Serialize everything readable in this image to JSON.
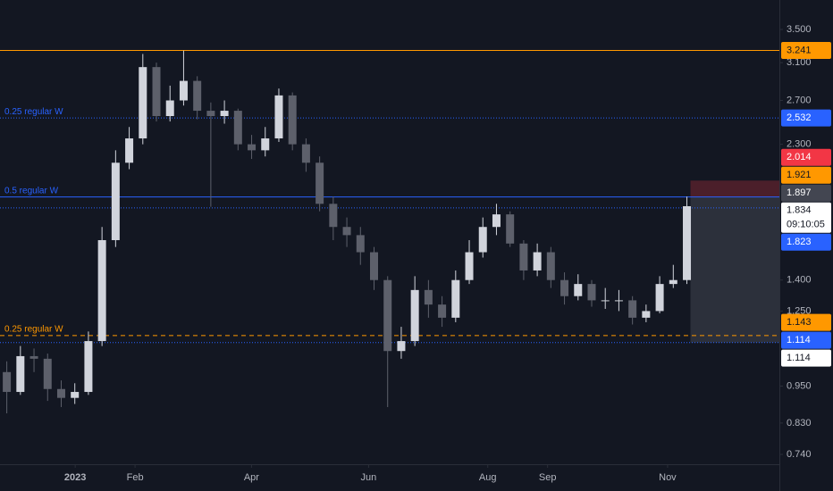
{
  "chart_data": {
    "type": "candlestick",
    "log_scale": true,
    "up_color": "#d1d4dc",
    "down_color": "#5d606b",
    "open": [
      1.0,
      0.93,
      1.06,
      1.05,
      0.94,
      0.91,
      0.93,
      1.12,
      1.62,
      2.15,
      2.35,
      3.05,
      2.55,
      2.7,
      2.9,
      2.6,
      2.55,
      2.6,
      2.3,
      2.25,
      2.35,
      2.75,
      2.3,
      2.15,
      1.85,
      1.7,
      1.65,
      1.55,
      1.4,
      1.08,
      1.12,
      1.35,
      1.28,
      1.22,
      1.4,
      1.55,
      1.7,
      1.78,
      1.6,
      1.45,
      1.55,
      1.4,
      1.32,
      1.38,
      1.3,
      1.3,
      1.3,
      1.22,
      1.25,
      1.38,
      1.4
    ],
    "high": [
      1.04,
      1.1,
      1.09,
      1.07,
      0.97,
      0.96,
      1.16,
      1.7,
      2.25,
      2.45,
      3.2,
      3.1,
      2.85,
      3.24,
      2.95,
      2.68,
      2.7,
      2.62,
      2.38,
      2.45,
      2.82,
      2.78,
      2.35,
      2.2,
      1.9,
      1.76,
      1.7,
      1.58,
      1.42,
      1.18,
      1.42,
      1.4,
      1.32,
      1.45,
      1.62,
      1.76,
      1.85,
      1.8,
      1.62,
      1.6,
      1.58,
      1.44,
      1.43,
      1.4,
      1.36,
      1.35,
      1.32,
      1.28,
      1.42,
      1.48,
      1.9
    ],
    "low": [
      0.86,
      0.92,
      1.0,
      0.9,
      0.88,
      0.89,
      0.92,
      1.1,
      1.58,
      2.1,
      2.3,
      2.5,
      2.5,
      2.65,
      2.52,
      1.83,
      2.48,
      2.25,
      2.18,
      2.2,
      2.32,
      2.25,
      2.08,
      1.8,
      1.62,
      1.58,
      1.48,
      1.35,
      0.88,
      1.05,
      1.1,
      1.22,
      1.18,
      1.2,
      1.38,
      1.52,
      1.65,
      1.58,
      1.4,
      1.42,
      1.36,
      1.28,
      1.3,
      1.27,
      1.26,
      1.25,
      1.19,
      1.2,
      1.24,
      1.36,
      1.38
    ],
    "close": [
      0.93,
      1.06,
      1.05,
      0.94,
      0.91,
      0.93,
      1.12,
      1.62,
      2.15,
      2.35,
      3.05,
      2.55,
      2.7,
      2.9,
      2.6,
      2.55,
      2.6,
      2.3,
      2.25,
      2.35,
      2.75,
      2.3,
      2.15,
      1.85,
      1.7,
      1.65,
      1.55,
      1.4,
      1.08,
      1.12,
      1.35,
      1.28,
      1.22,
      1.4,
      1.55,
      1.7,
      1.78,
      1.6,
      1.45,
      1.55,
      1.4,
      1.32,
      1.38,
      1.3,
      1.3,
      1.3,
      1.22,
      1.25,
      1.38,
      1.4,
      1.834
    ],
    "xlim": [
      -0.5,
      56.8
    ],
    "xticks": [
      {
        "value": 5.03,
        "label": "2023"
      },
      {
        "value": 9.43,
        "label": "Feb"
      },
      {
        "value": 17.99,
        "label": "Apr"
      },
      {
        "value": 26.6,
        "label": "Jun"
      },
      {
        "value": 35.36,
        "label": "Aug"
      },
      {
        "value": 39.76,
        "label": "Sep"
      },
      {
        "value": 48.58,
        "label": "Nov"
      }
    ],
    "ylim": [
      0.714,
      3.898
    ],
    "yticks": [
      {
        "value": 0.74,
        "label": "0.740"
      },
      {
        "value": 0.83,
        "label": "0.830"
      },
      {
        "value": 0.95,
        "label": "0.950"
      },
      {
        "value": 1.25,
        "label": "1.250"
      },
      {
        "value": 1.4,
        "label": "1.400"
      },
      {
        "value": 2.3,
        "label": "2.300"
      },
      {
        "value": 2.7,
        "label": "2.700"
      },
      {
        "value": 3.1,
        "label": "3.100"
      },
      {
        "value": 3.5,
        "label": "3.500"
      }
    ],
    "levels": [
      {
        "value": 3.241,
        "color": "#ff9800",
        "style": "solid"
      },
      {
        "value": 2.532,
        "color": "#2962ff",
        "style": "dotted",
        "label": "0.25 regular W"
      },
      {
        "value": 1.897,
        "color": "#2962ff",
        "style": "solid",
        "label": "0.5 regular W"
      },
      {
        "value": 1.823,
        "color": "#2962ff",
        "style": "dotted"
      },
      {
        "value": 1.143,
        "color": "#ff9800",
        "style": "dashed",
        "label": "0.25 regular W"
      },
      {
        "value": 1.114,
        "color": "#2962ff",
        "style": "dotted"
      }
    ],
    "position": {
      "stop": 2.014,
      "entry": 1.897,
      "target": 1.114
    },
    "price_tags": [
      {
        "value": 3.241,
        "color": "#ff9800",
        "text_color": "#131722"
      },
      {
        "value": 2.532,
        "color": "#2962ff",
        "text_color": "#ffffff"
      },
      {
        "value": 2.014,
        "color": "#f23645",
        "text_color": "#ffffff"
      },
      {
        "value": 1.921,
        "color": "#ff9800",
        "text_color": "#131722"
      },
      {
        "value": 1.897,
        "color": "#434651",
        "text_color": "#ffffff"
      },
      {
        "value": 1.834,
        "color": "#ffffff",
        "text_color": "#131722",
        "countdown": "09:10:05"
      },
      {
        "value": 1.823,
        "color": "#2962ff",
        "text_color": "#ffffff"
      },
      {
        "value": 1.143,
        "color": "#ff9800",
        "text_color": "#131722"
      },
      {
        "value": 1.114,
        "color": "#2962ff",
        "text_color": "#ffffff"
      },
      {
        "value": 1.114,
        "color": "#ffffff",
        "text_color": "#131722"
      }
    ]
  }
}
